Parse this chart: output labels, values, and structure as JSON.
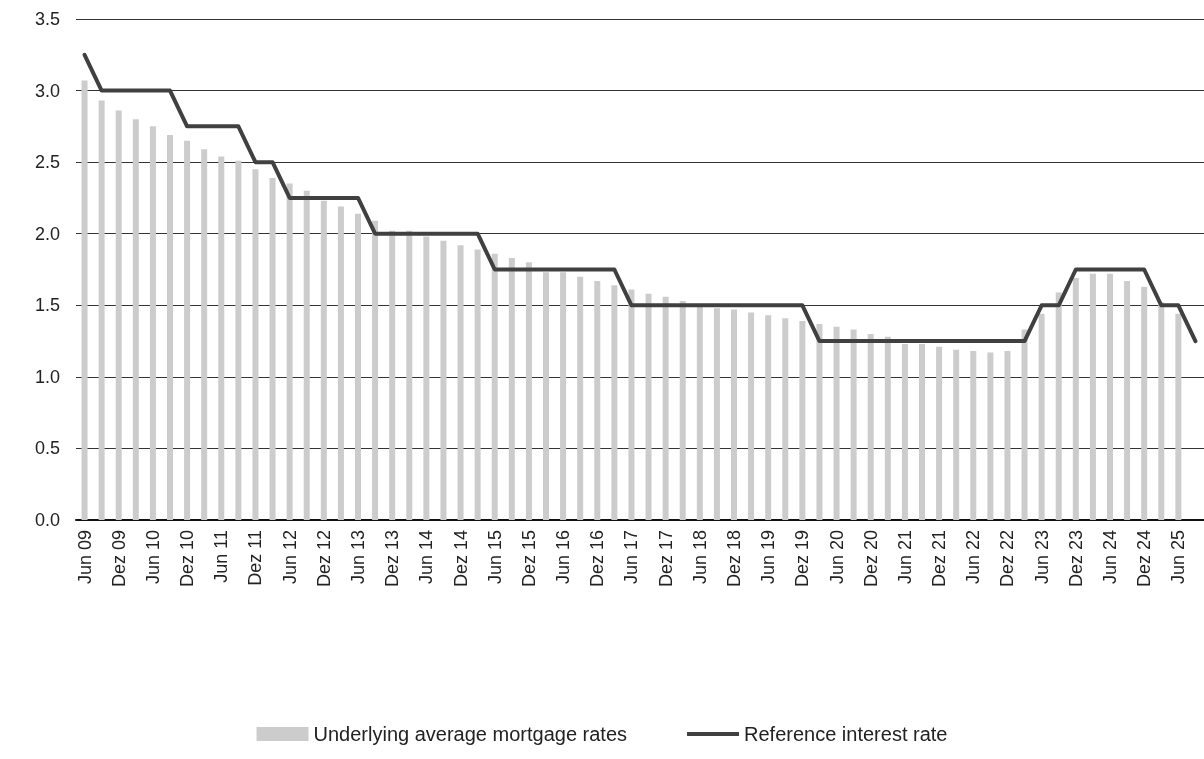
{
  "chart_data": {
    "type": "bar",
    "categories": [
      "Jun 09",
      null,
      "Dez 09",
      null,
      "Jun 10",
      null,
      "Dez 10",
      null,
      "Jun 11",
      null,
      "Dez 11",
      null,
      "Jun 12",
      null,
      "Dez 12",
      null,
      "Jun 13",
      null,
      "Dez 13",
      null,
      "Jun 14",
      null,
      "Dez 14",
      null,
      "Jun 15",
      null,
      "Dez 15",
      null,
      "Jun 16",
      null,
      "Dez 16",
      null,
      "Jun 17",
      null,
      "Dez 17",
      null,
      "Jun 18",
      null,
      "Dez 18",
      null,
      "Jun 19",
      null,
      "Dez 19",
      null,
      "Jun 20",
      null,
      "Dez 20",
      null,
      "Jun 21",
      null,
      "Dez 21",
      null,
      "Jun 22",
      null,
      "Dez 22",
      null,
      "Jun 23",
      null,
      "Dez 23",
      null,
      "Jun 24",
      null,
      "Dez 24",
      null,
      "Jun 25",
      null
    ],
    "series": [
      {
        "name": "Underlying average mortgage rates",
        "color": "#cccccc",
        "values": [
          3.07,
          2.93,
          2.86,
          2.8,
          2.75,
          2.69,
          2.65,
          2.59,
          2.54,
          2.51,
          2.45,
          2.39,
          2.35,
          2.3,
          2.23,
          2.19,
          2.14,
          2.09,
          2.02,
          2.02,
          1.98,
          1.95,
          1.92,
          1.89,
          1.86,
          1.83,
          1.8,
          1.73,
          1.73,
          1.7,
          1.67,
          1.64,
          1.61,
          1.58,
          1.56,
          1.53,
          1.49,
          1.48,
          1.47,
          1.45,
          1.43,
          1.41,
          1.39,
          1.37,
          1.35,
          1.33,
          1.3,
          1.28,
          1.23,
          1.23,
          1.21,
          1.19,
          1.18,
          1.17,
          1.18,
          1.33,
          1.44,
          1.59,
          1.69,
          1.72,
          1.72,
          1.67,
          1.63,
          1.52,
          1.44,
          null
        ]
      },
      {
        "name": "Reference interest rate",
        "type": "line",
        "color": "#404040",
        "values": [
          3.25,
          3.0,
          3.0,
          3.0,
          3.0,
          3.0,
          2.75,
          2.75,
          2.75,
          2.75,
          2.5,
          2.5,
          2.25,
          2.25,
          2.25,
          2.25,
          2.25,
          2.0,
          2.0,
          2.0,
          2.0,
          2.0,
          2.0,
          2.0,
          1.75,
          1.75,
          1.75,
          1.75,
          1.75,
          1.75,
          1.75,
          1.75,
          1.5,
          1.5,
          1.5,
          1.5,
          1.5,
          1.5,
          1.5,
          1.5,
          1.5,
          1.5,
          1.5,
          1.25,
          1.25,
          1.25,
          1.25,
          1.25,
          1.25,
          1.25,
          1.25,
          1.25,
          1.25,
          1.25,
          1.25,
          1.25,
          1.5,
          1.5,
          1.75,
          1.75,
          1.75,
          1.75,
          1.75,
          1.5,
          1.5,
          1.25
        ]
      }
    ],
    "ylim": [
      0,
      3.5
    ],
    "yticks": [
      {
        "value": 0,
        "label": "0.0"
      },
      {
        "value": 0.5,
        "label": "0.5"
      },
      {
        "value": 1,
        "label": "1.0"
      },
      {
        "value": 1.5,
        "label": "1.5"
      },
      {
        "value": 2,
        "label": "2.0"
      },
      {
        "value": 2.5,
        "label": "2.5"
      },
      {
        "value": 3,
        "label": "3.0"
      },
      {
        "value": 3.5,
        "label": "3.5"
      }
    ],
    "grid": "y",
    "legend": "bottom",
    "marker": "none",
    "line_style": "solid"
  }
}
